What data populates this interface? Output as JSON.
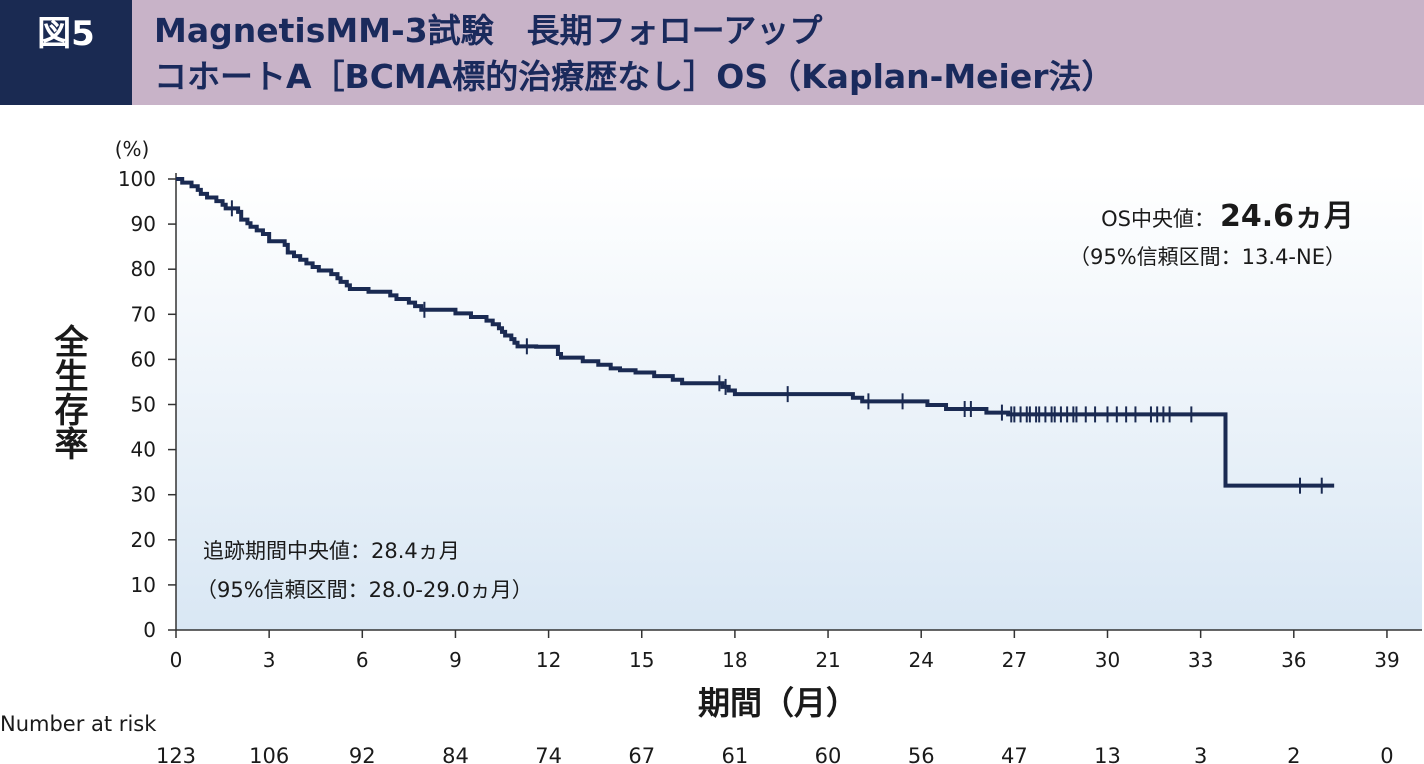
{
  "header": {
    "figure_label": "図5",
    "title_line1": "MagnetisMM-3試験　長期フォローアップ",
    "title_line2": "コホートA［BCMA標的治療歴なし］OS（Kaplan-Meier法）"
  },
  "chart_data": {
    "type": "line",
    "title": "コホートA［BCMA標的治療歴なし］OS（Kaplan-Meier法）",
    "ylabel": "全生存率",
    "yunit": "(%)",
    "xlabel": "期間（月）",
    "xlim": [
      0,
      40
    ],
    "ylim": [
      0,
      100
    ],
    "x_ticks": [
      0,
      3,
      6,
      9,
      12,
      15,
      18,
      21,
      24,
      27,
      30,
      33,
      36,
      39
    ],
    "y_ticks": [
      0,
      10,
      20,
      30,
      40,
      50,
      60,
      70,
      80,
      90,
      100
    ],
    "series": [
      {
        "color": "#1a2a52",
        "step_points": [
          [
            0,
            100
          ],
          [
            0.2,
            99.2
          ],
          [
            0.5,
            98.4
          ],
          [
            0.7,
            97.6
          ],
          [
            0.8,
            96.7
          ],
          [
            1.0,
            95.9
          ],
          [
            1.3,
            95.1
          ],
          [
            1.5,
            94.3
          ],
          [
            1.6,
            93.5
          ],
          [
            2.0,
            92.7
          ],
          [
            2.1,
            91.0
          ],
          [
            2.3,
            90.2
          ],
          [
            2.4,
            89.4
          ],
          [
            2.6,
            88.6
          ],
          [
            2.8,
            87.8
          ],
          [
            3.0,
            86.2
          ],
          [
            3.3,
            86.2
          ],
          [
            3.5,
            85.4
          ],
          [
            3.6,
            83.7
          ],
          [
            3.8,
            82.9
          ],
          [
            4.0,
            82.1
          ],
          [
            4.2,
            81.3
          ],
          [
            4.4,
            80.5
          ],
          [
            4.6,
            79.7
          ],
          [
            5.0,
            78.9
          ],
          [
            5.2,
            78.0
          ],
          [
            5.3,
            77.2
          ],
          [
            5.5,
            76.4
          ],
          [
            5.6,
            75.6
          ],
          [
            6.2,
            75.0
          ],
          [
            6.9,
            74.2
          ],
          [
            7.1,
            73.4
          ],
          [
            7.5,
            72.6
          ],
          [
            7.7,
            71.8
          ],
          [
            7.9,
            71.0
          ],
          [
            9.0,
            70.2
          ],
          [
            9.5,
            69.4
          ],
          [
            10.0,
            68.6
          ],
          [
            10.2,
            67.8
          ],
          [
            10.4,
            66.9
          ],
          [
            10.5,
            66.1
          ],
          [
            10.6,
            65.3
          ],
          [
            10.8,
            64.5
          ],
          [
            10.9,
            63.7
          ],
          [
            11.0,
            62.9
          ],
          [
            11.6,
            62.8
          ],
          [
            12.3,
            61.2
          ],
          [
            12.4,
            60.4
          ],
          [
            13.1,
            59.6
          ],
          [
            13.6,
            58.8
          ],
          [
            14.0,
            58.0
          ],
          [
            14.3,
            57.6
          ],
          [
            14.8,
            57.1
          ],
          [
            15.4,
            56.3
          ],
          [
            16.0,
            55.5
          ],
          [
            16.3,
            54.7
          ],
          [
            17.6,
            53.9
          ],
          [
            17.8,
            53.1
          ],
          [
            18.0,
            52.3
          ],
          [
            21.8,
            51.5
          ],
          [
            22.1,
            50.7
          ],
          [
            24.2,
            49.9
          ],
          [
            24.8,
            49.0
          ],
          [
            26.1,
            48.2
          ],
          [
            26.8,
            47.8
          ],
          [
            33.8,
            47.8
          ],
          [
            33.8,
            32.0
          ],
          [
            37.3,
            32.0
          ]
        ],
        "censor_x": [
          1.8,
          8.0,
          11.3,
          17.5,
          17.7,
          19.7,
          22.3,
          23.4,
          25.4,
          25.6,
          26.6,
          26.9,
          27.0,
          27.2,
          27.4,
          27.5,
          27.7,
          27.8,
          28.0,
          28.2,
          28.3,
          28.5,
          28.7,
          28.9,
          29.0,
          29.3,
          29.6,
          30.0,
          30.3,
          30.6,
          30.9,
          31.4,
          31.6,
          31.8,
          32.0,
          32.7,
          36.2,
          36.9
        ]
      }
    ],
    "annotations": {
      "os_median_label": "OS中央値：",
      "os_median_value": "24.6ヵ月",
      "os_ci": "（95%信頼区間：13.4-NE）",
      "followup_median": "追跡期間中央値：28.4ヵ月",
      "followup_ci": "（95%信頼区間：28.0-29.0ヵ月）"
    },
    "risk_table": {
      "label": "Number at risk",
      "x": [
        0,
        3,
        6,
        9,
        12,
        15,
        18,
        21,
        24,
        27,
        30,
        33,
        36,
        39
      ],
      "counts": [
        123,
        106,
        92,
        84,
        74,
        67,
        61,
        60,
        56,
        47,
        13,
        3,
        2,
        0
      ]
    },
    "grid": false,
    "legend": "none"
  }
}
